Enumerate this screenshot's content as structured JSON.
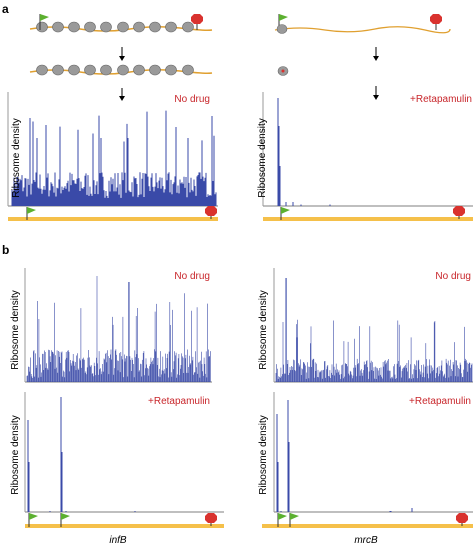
{
  "panel_a": {
    "letter": "a",
    "left": {
      "condition": "No drug",
      "ylabel": "Ribosome density"
    },
    "right": {
      "condition": "+Retapamulin",
      "ylabel": "Ribosome density"
    }
  },
  "panel_b": {
    "letter": "b",
    "genes": {
      "left": "infB",
      "right": "mrcB"
    },
    "top_left": {
      "condition": "No drug",
      "ylabel": "Ribosome density"
    },
    "top_right": {
      "condition": "No drug",
      "ylabel": "Ribosome density"
    },
    "bottom_left": {
      "condition": "+Retapamulin",
      "ylabel": "Ribosome density"
    },
    "bottom_right": {
      "condition": "+Retapamulin",
      "ylabel": "Ribosome density"
    }
  },
  "colors": {
    "signal": "#3a4aa8",
    "gene_bar": "#f5c04a",
    "mrna": "#e0a030",
    "start_flag": "#5cb030",
    "stop_sign": "#d9322e",
    "label_red": "#c8262b",
    "ribosome": "#9a9a9a"
  }
}
